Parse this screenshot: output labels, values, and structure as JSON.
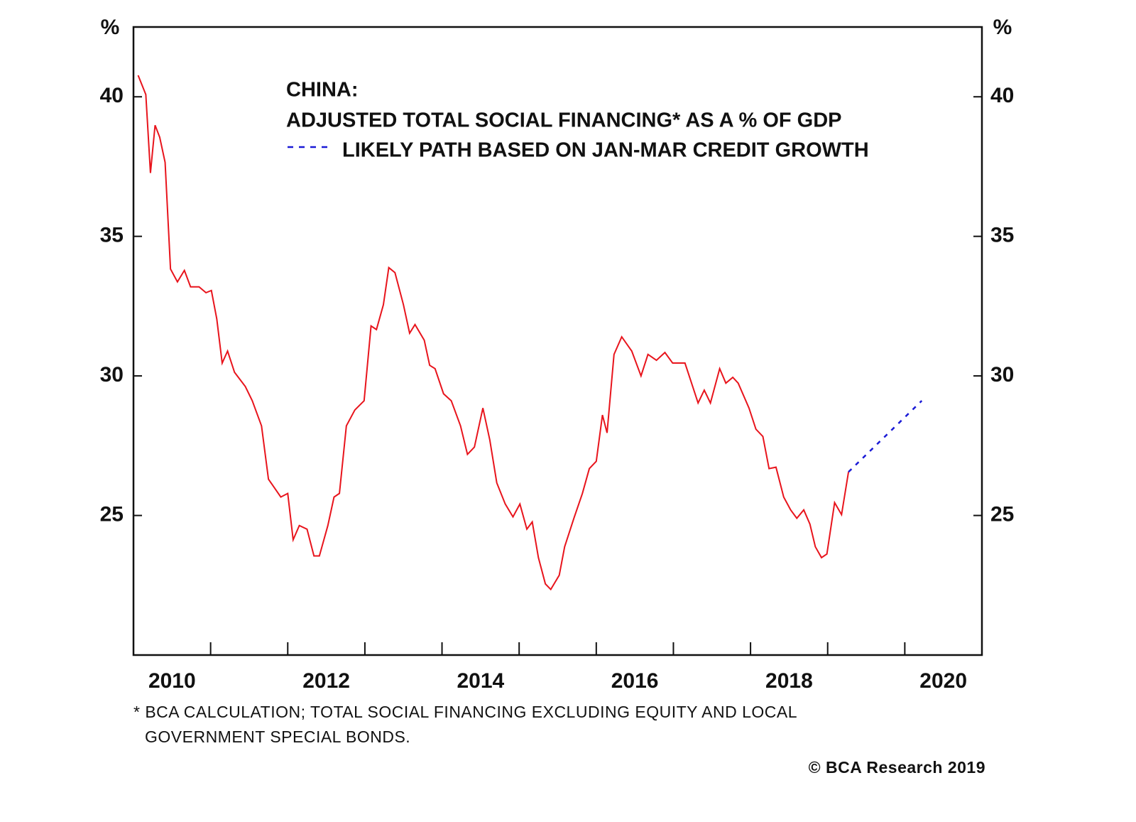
{
  "chart_data": {
    "type": "line",
    "title_lines": [
      "CHINA:",
      "ADJUSTED TOTAL SOCIAL FINANCING* AS A % OF GDP"
    ],
    "y_unit": "%",
    "footnote_lines": [
      "* BCA CALCULATION; TOTAL SOCIAL FINANCING EXCLUDING EQUITY AND LOCAL",
      "GOVERNMENT SPECIAL BONDS."
    ],
    "credit": "© BCA Research 2019",
    "xlim": [
      2010,
      2021
    ],
    "xticks": [
      2011,
      2012,
      2013,
      2014,
      2015,
      2016,
      2017,
      2018,
      2019,
      2020
    ],
    "xlabels": [
      {
        "value": 2010.5,
        "label": "2010"
      },
      {
        "value": 2012.5,
        "label": "2012"
      },
      {
        "value": 2014.5,
        "label": "2014"
      },
      {
        "value": 2016.5,
        "label": "2016"
      },
      {
        "value": 2018.5,
        "label": "2018"
      },
      {
        "value": 2020.5,
        "label": "2020"
      }
    ],
    "ylim": [
      20,
      42.5
    ],
    "yticks": [
      25,
      30,
      35,
      40
    ],
    "grid": false,
    "series": [
      {
        "color": "#e8141c",
        "dashed": false,
        "x": [
          2010.06,
          2010.16,
          2010.22,
          2010.28,
          2010.34,
          2010.41,
          2010.48,
          2010.57,
          2010.66,
          2010.74,
          2010.85,
          2010.94,
          2011.01,
          2011.08,
          2011.15,
          2011.22,
          2011.31,
          2011.45,
          2011.54,
          2011.66,
          2011.75,
          2011.91,
          2012.0,
          2012.07,
          2012.15,
          2012.25,
          2012.34,
          2012.41,
          2012.52,
          2012.6,
          2012.67,
          2012.76,
          2012.87,
          2012.99,
          2013.08,
          2013.15,
          2013.24,
          2013.31,
          2013.39,
          2013.5,
          2013.58,
          2013.65,
          2013.77,
          2013.84,
          2013.91,
          2014.02,
          2014.12,
          2014.24,
          2014.33,
          2014.42,
          2014.53,
          2014.62,
          2014.71,
          2014.82,
          2014.92,
          2015.01,
          2015.1,
          2015.17,
          2015.25,
          2015.34,
          2015.41,
          2015.52,
          2015.59,
          2015.71,
          2015.82,
          2015.91,
          2016.0,
          2016.08,
          2016.14,
          2016.23,
          2016.33,
          2016.46,
          2016.58,
          2016.67,
          2016.78,
          2016.89,
          2016.99,
          2017.15,
          2017.25,
          2017.32,
          2017.4,
          2017.48,
          2017.6,
          2017.68,
          2017.77,
          2017.84,
          2017.98,
          2018.07,
          2018.16,
          2018.24,
          2018.33,
          2018.43,
          2018.52,
          2018.6,
          2018.69,
          2018.77,
          2018.84,
          2018.92,
          2018.99,
          2019.09,
          2019.18,
          2019.27
        ],
        "values": [
          40.77,
          40.08,
          37.27,
          38.98,
          38.55,
          37.65,
          33.83,
          33.37,
          33.78,
          33.19,
          33.19,
          32.98,
          33.06,
          32.04,
          30.46,
          30.89,
          30.13,
          29.62,
          29.11,
          28.21,
          26.3,
          25.66,
          25.79,
          24.13,
          24.64,
          24.51,
          23.55,
          23.55,
          24.64,
          25.66,
          25.79,
          28.21,
          28.78,
          29.11,
          31.79,
          31.66,
          32.55,
          33.88,
          33.7,
          32.55,
          31.53,
          31.84,
          31.28,
          30.38,
          30.26,
          29.36,
          29.11,
          28.21,
          27.19,
          27.45,
          28.85,
          27.7,
          26.17,
          25.41,
          24.95,
          25.41,
          24.51,
          24.77,
          23.49,
          22.55,
          22.35,
          22.86,
          23.88,
          24.9,
          25.79,
          26.68,
          26.94,
          28.6,
          27.96,
          30.77,
          31.4,
          30.89,
          30.0,
          30.77,
          30.56,
          30.84,
          30.46,
          30.46,
          29.62,
          29.03,
          29.49,
          29.03,
          30.26,
          29.74,
          29.95,
          29.74,
          28.85,
          28.09,
          27.83,
          26.68,
          26.73,
          25.66,
          25.2,
          24.9,
          25.2,
          24.69,
          23.88,
          23.49,
          23.62,
          25.46,
          25.03,
          26.56
        ]
      },
      {
        "name": "LIKELY PATH BASED ON JAN-MAR CREDIT GROWTH",
        "color": "#1a1ad6",
        "dashed": true,
        "x": [
          2019.27,
          2020.22
        ],
        "values": [
          26.56,
          29.11
        ]
      }
    ]
  }
}
